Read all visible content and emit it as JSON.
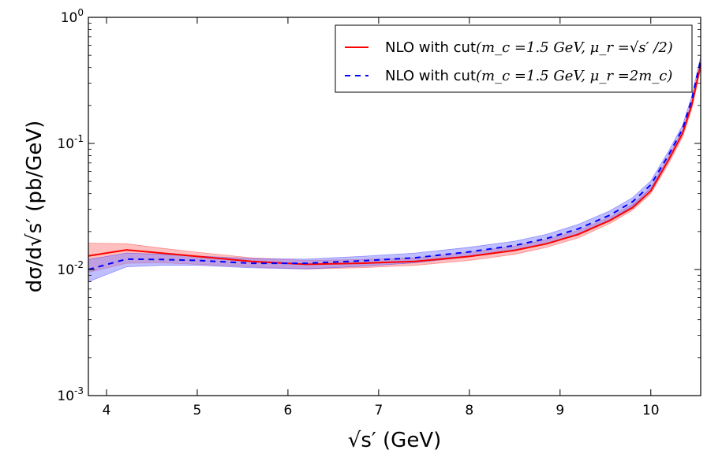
{
  "chart_data": {
    "type": "line",
    "title": "",
    "xlabel": "√s′ (GeV)",
    "ylabel": "dσ/d√s′ (pb/GeV)",
    "xlim": [
      3.8,
      10.55
    ],
    "ylim": [
      0.001,
      1
    ],
    "yscale": "log",
    "x_ticks": [
      4,
      5,
      6,
      7,
      8,
      9,
      10
    ],
    "x_tick_labels": [
      "4",
      "5",
      "6",
      "7",
      "8",
      "9",
      "10"
    ],
    "y_ticks": [
      {
        "value": 0.001,
        "base": "10",
        "exp": "-3"
      },
      {
        "value": 0.01,
        "base": "10",
        "exp": "-2"
      },
      {
        "value": 0.1,
        "base": "10",
        "exp": "-1"
      },
      {
        "value": 1,
        "base": "10",
        "exp": "0"
      }
    ],
    "legend_position": "top-right",
    "series": [
      {
        "name": "NLO with cut(m_c = 1.5 GeV, μ_r = √s′/2)",
        "legend_main": "NLO with cut",
        "legend_math": "(m_c =1.5 GeV, μ_r =√s′ /2)",
        "color": "#ff0000",
        "band_color": "#ff8080",
        "style": "solid",
        "x": [
          3.8,
          4.22,
          4.6,
          5.0,
          5.6,
          6.2,
          6.8,
          7.4,
          8.0,
          8.5,
          8.85,
          9.2,
          9.55,
          9.8,
          10.0,
          10.2,
          10.35,
          10.45,
          10.55
        ],
        "y": [
          0.0128,
          0.0143,
          0.0135,
          0.0127,
          0.0116,
          0.011,
          0.0112,
          0.0116,
          0.0127,
          0.0142,
          0.016,
          0.019,
          0.0245,
          0.031,
          0.042,
          0.075,
          0.12,
          0.2,
          0.42
        ],
        "low": [
          0.0095,
          0.0112,
          0.0113,
          0.011,
          0.0105,
          0.0101,
          0.0103,
          0.0108,
          0.0118,
          0.0132,
          0.015,
          0.0178,
          0.0232,
          0.0295,
          0.04,
          0.07,
          0.112,
          0.185,
          0.39
        ],
        "high": [
          0.0162,
          0.016,
          0.0148,
          0.0137,
          0.0124,
          0.0118,
          0.012,
          0.0124,
          0.0137,
          0.0153,
          0.0172,
          0.0204,
          0.026,
          0.033,
          0.0445,
          0.08,
          0.128,
          0.215,
          0.45
        ]
      },
      {
        "name": "NLO with cut(m_c = 1.5 GeV, μ_r = 2m_c)",
        "legend_main": "NLO with cut",
        "legend_math": "(m_c =1.5 GeV, μ_r =2m_c)",
        "color": "#0000ff",
        "band_color": "#8080ff",
        "style": "dashed",
        "x": [
          3.8,
          4.22,
          4.6,
          5.0,
          5.6,
          6.2,
          6.8,
          7.4,
          8.0,
          8.5,
          8.85,
          9.2,
          9.55,
          9.8,
          10.0,
          10.2,
          10.35,
          10.45,
          10.55
        ],
        "y": [
          0.01,
          0.0121,
          0.012,
          0.0118,
          0.0112,
          0.0112,
          0.0117,
          0.0124,
          0.0138,
          0.0155,
          0.0176,
          0.021,
          0.027,
          0.0345,
          0.047,
          0.082,
          0.13,
          0.22,
          0.46
        ],
        "low": [
          0.008,
          0.0105,
          0.0108,
          0.0108,
          0.0103,
          0.0101,
          0.0106,
          0.0113,
          0.0126,
          0.0142,
          0.016,
          0.0192,
          0.0248,
          0.0318,
          0.0435,
          0.076,
          0.121,
          0.205,
          0.43
        ],
        "high": [
          0.012,
          0.0135,
          0.0132,
          0.0128,
          0.0122,
          0.0121,
          0.0127,
          0.0135,
          0.015,
          0.0168,
          0.019,
          0.0228,
          0.0292,
          0.0372,
          0.0505,
          0.088,
          0.139,
          0.235,
          0.49
        ]
      }
    ]
  }
}
